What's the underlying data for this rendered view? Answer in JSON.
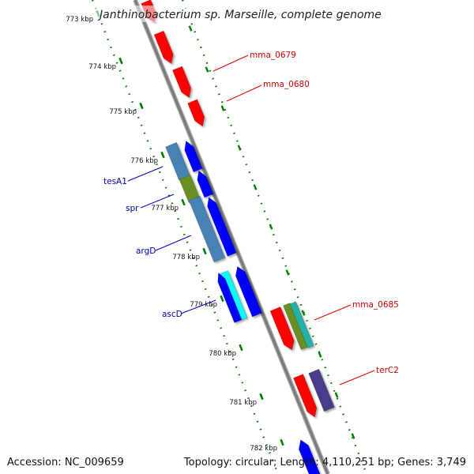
{
  "title": "Janthinobacterium sp. Marseille, complete genome",
  "footer": {
    "accession": "Accession: NC_009659",
    "topology": "Topology: circular; Length: 4,110,251 bp; Genes: 3,749"
  },
  "colors": {
    "forward": "#ff0000",
    "reverse": "#0000ff",
    "steelblue": "#4682b4",
    "olive": "#6b8e23",
    "cyan": "#00ffff",
    "darkslate": "#483d8b",
    "backbone": "#808080",
    "ticks": "#008000"
  },
  "ticks": [
    {
      "label": "773 kbp"
    },
    {
      "label": "774 kbp"
    },
    {
      "label": "775 kbp"
    },
    {
      "label": "776 kbp"
    },
    {
      "label": "777 kbp"
    },
    {
      "label": "778 kbp"
    },
    {
      "label": "779 kbp"
    },
    {
      "label": "780 kbp"
    },
    {
      "label": "781 kbp"
    },
    {
      "label": "782 kbp"
    }
  ],
  "gene_labels": {
    "mma_0679": "mma_0679",
    "mma_0680": "mma_0680",
    "tesA1": "tesA1",
    "spr": "spr",
    "argD": "argD",
    "ascD": "ascD",
    "mma_0685": "mma_0685",
    "terC2": "terC2"
  }
}
